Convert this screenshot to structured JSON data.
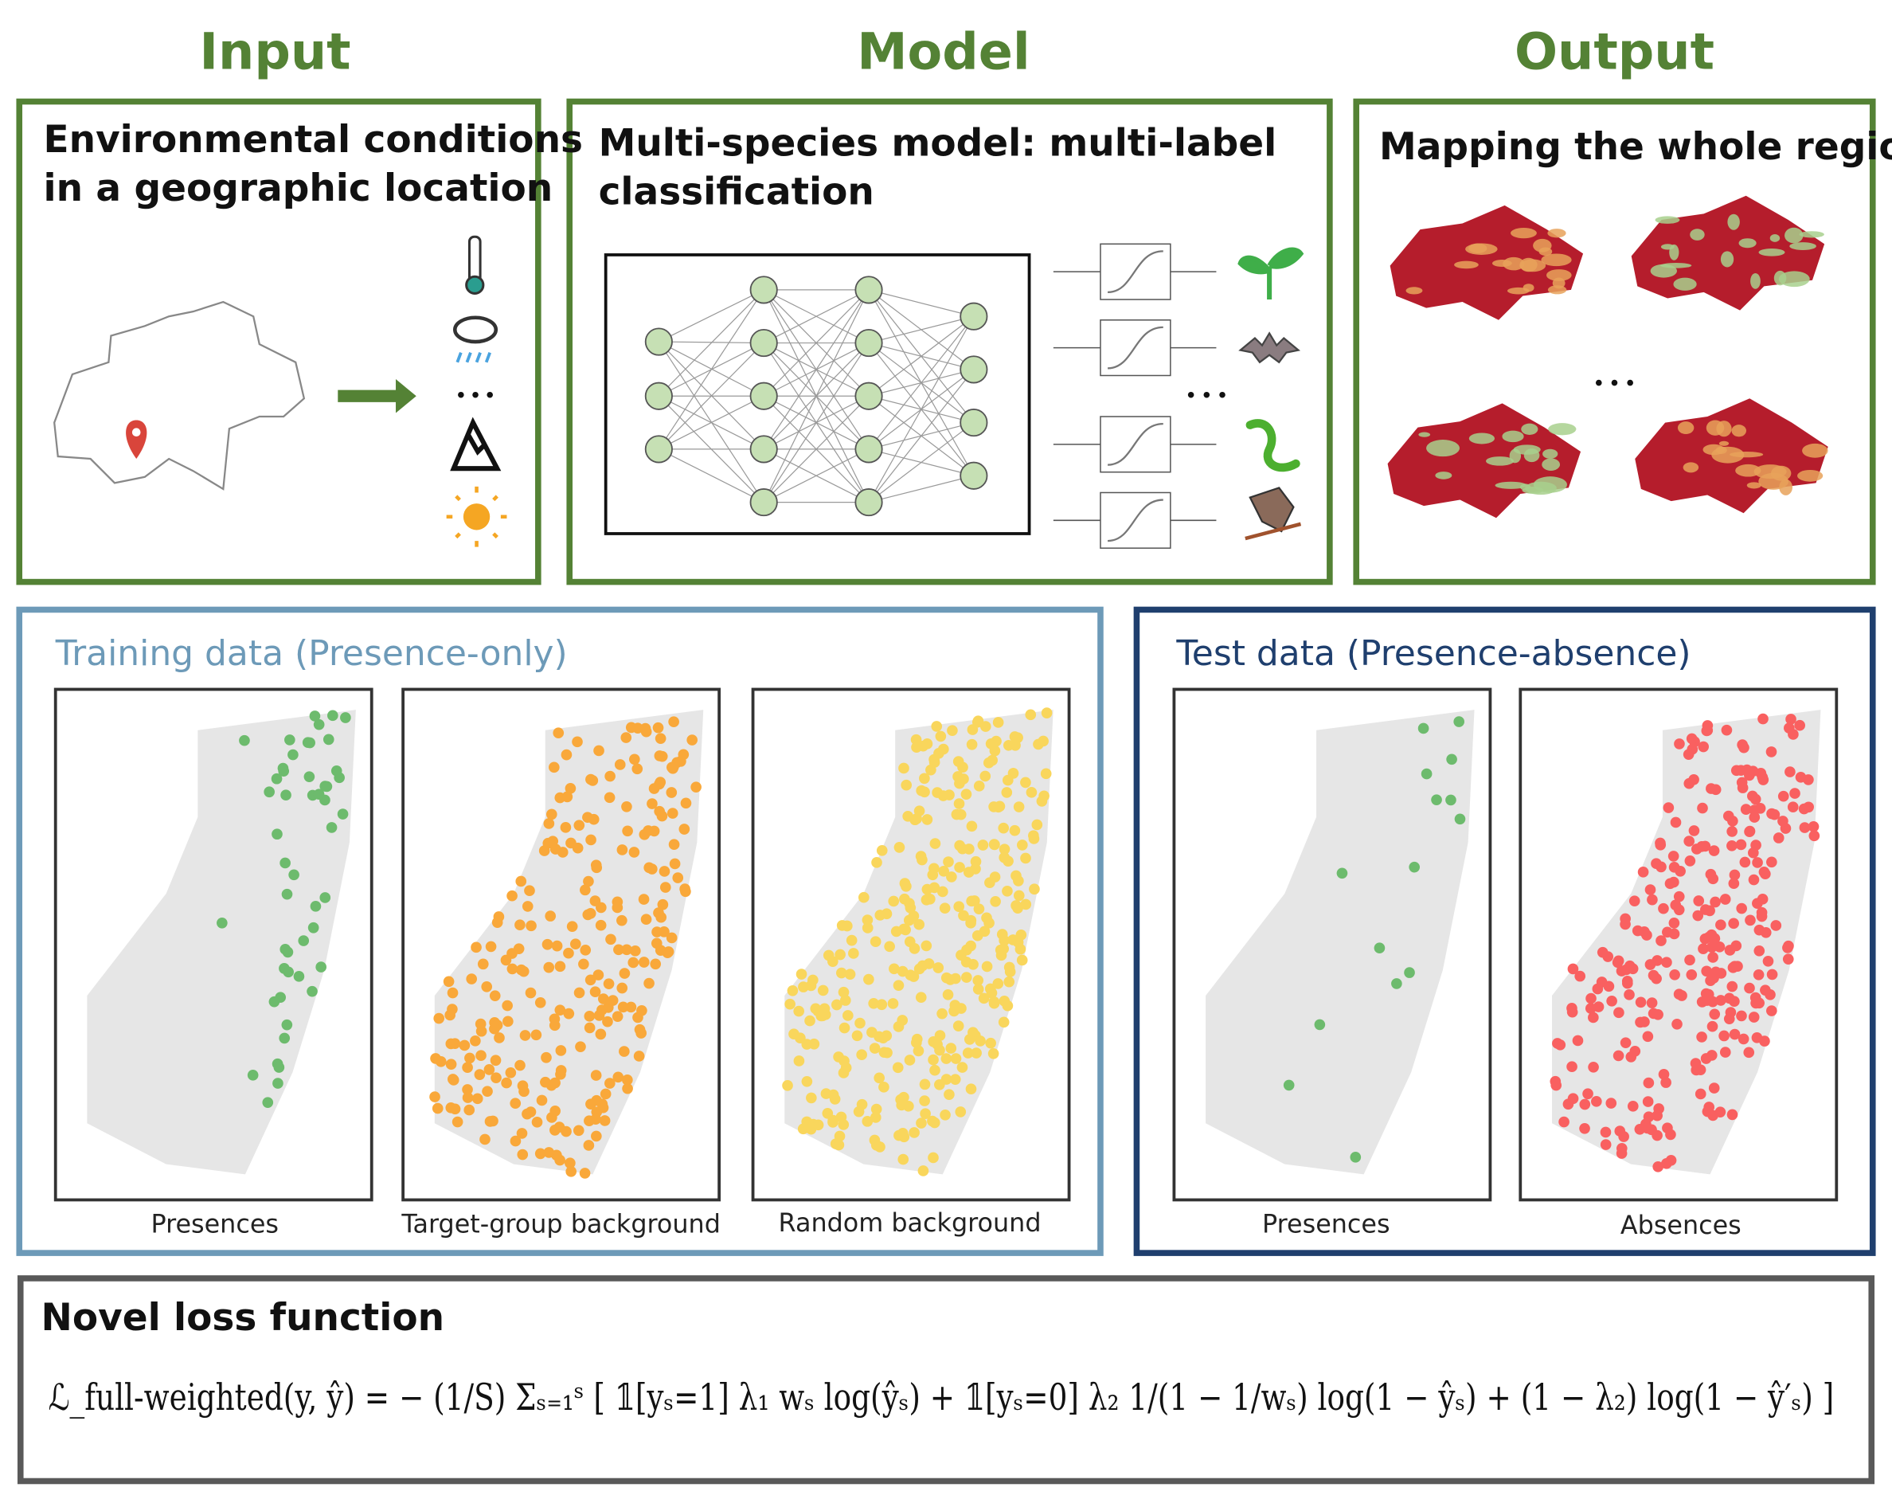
{
  "headers": {
    "input": "Input",
    "model": "Model",
    "output": "Output"
  },
  "input": {
    "title_lines": [
      "Environmental conditions",
      "in a geographic location"
    ]
  },
  "model": {
    "title_lines": [
      "Multi-species model: multi-label",
      "classification"
    ]
  },
  "output": {
    "title": "Mapping the whole region"
  },
  "training": {
    "title": "Training data (Presence-only)",
    "panels": [
      "Presences",
      "Target-group background",
      "Random background"
    ]
  },
  "test": {
    "title": "Test data (Presence-absence)",
    "panels": [
      "Presences",
      "Absences"
    ]
  },
  "loss": {
    "title": "Novel loss function",
    "formula": "ℒ_full-weighted(y, ŷ) = − (1/S) Σₛ₌₁ˢ [ 𝟙[yₛ=1] λ₁ wₛ log(ŷₛ) + 𝟙[yₛ=0] λ₂ 1/(1 − 1/wₛ) log(1 − ŷₛ) + (1 − λ₂) log(1 − ŷ′ₛ) ]"
  }
}
